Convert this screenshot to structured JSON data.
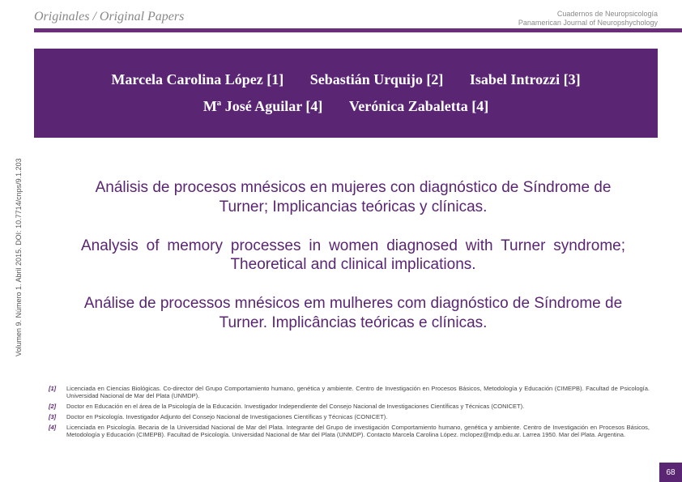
{
  "header": {
    "section_label": "Originales / Original Papers",
    "journal_line1": "Cuadernos de Neuropsicología",
    "journal_line2": "Panamerican Journal of Neuropshychology"
  },
  "sidebar": {
    "citation": "Volumen 9. Número 1. Abril 2015. DOI: 10.7714/cnps/9.1.203"
  },
  "authors": {
    "row1": [
      "Marcela Carolina López [1]",
      "Sebastián Urquijo [2]",
      "Isabel Introzzi [3]"
    ],
    "row2": [
      "Mª José Aguilar [4]",
      "Verónica Zabaletta [4]"
    ]
  },
  "titles": {
    "es": "Análisis de procesos mnésicos en mujeres con diagnóstico de Síndrome de Turner; Implicancias teóricas y clínicas.",
    "en": "Analysis of memory processes in women diagnosed with Turner syndrome; Theoretical and clinical implications.",
    "pt": "Análise de processos mnésicos em mulheres com diagnóstico de Síndrome de Turner. Implicâncias teóricas e clínicas."
  },
  "affiliations": [
    {
      "num": "[1]",
      "text": "Licenciada en Ciencias Biológicas. Co-director del Grupo Comportamiento humano, genética y ambiente. Centro de Investigación en Procesos Básicos, Metodología y Educación (CIMEPB). Facultad de Psicología. Universidad Nacional de Mar del Plata (UNMDP)."
    },
    {
      "num": "[2]",
      "text": "Doctor en Educación en el área de la Psicología de la Educación. Investigador Independiente del Consejo Nacional de Investigaciones Científicas  y Técnicas (CONICET)."
    },
    {
      "num": "[3]",
      "text": "Doctor en Psicología. Investigador Adjunto del Consejo Nacional de Investigaciones Científicas  y Técnicas (CONICET)."
    },
    {
      "num": "[4]",
      "text": "Licenciada en Psicología. Becaria de la Universidad Nacional de Mar del Plata. Integrante del Grupo de investigación Comportamiento humano, genética y ambiente. Centro de Investigación en Procesos Básicos, Metodología y Educación (CIMEPB). Facultad de Psicología. Universidad Nacional de Mar del Plata (UNMDP). Contacto Marcela Carolina López. mclopez@mdp.edu.ar. Larrea 1950. Mar del Plata. Argentina."
    }
  ],
  "page_number": "68",
  "colors": {
    "brand_purple": "#5a2573",
    "bar_purple": "#6a2e7a",
    "header_gray": "#888888"
  }
}
